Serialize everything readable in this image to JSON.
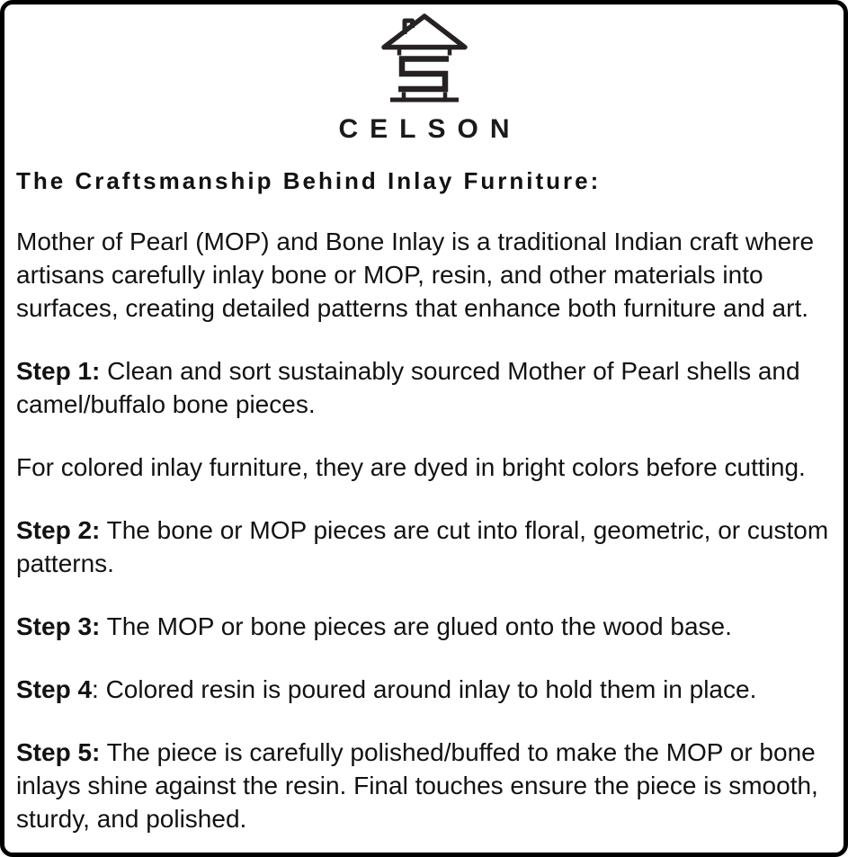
{
  "brand": {
    "name": "CELSON",
    "logo": {
      "icon": "house-s-monogram-icon",
      "stroke_color": "#262223"
    }
  },
  "colors": {
    "border": "#000000",
    "text": "#121212",
    "background": "#ffffff"
  },
  "heading": "The Craftsmanship Behind Inlay Furniture:",
  "paragraphs": [
    {
      "lines": [
        {
          "bold": "",
          "text": "Mother of Pearl (MOP) and Bone Inlay is a traditional Indian craft where"
        },
        {
          "bold": "",
          "text": "artisans carefully inlay bone or MOP, resin, and other materials into"
        },
        {
          "bold": "",
          "text": "surfaces, creating detailed patterns that enhance both furniture and art."
        }
      ]
    },
    {
      "lines": [
        {
          "bold": "Step 1:",
          "text": " Clean and sort sustainably sourced Mother of Pearl shells and"
        },
        {
          "bold": "",
          "text": "camel/buffalo bone pieces."
        }
      ]
    },
    {
      "lines": [
        {
          "bold": "",
          "text": "For colored inlay furniture, they are dyed in bright colors before cutting."
        }
      ]
    },
    {
      "lines": [
        {
          "bold": "Step 2:",
          "text": " The bone or MOP pieces are cut into floral, geometric, or custom"
        },
        {
          "bold": "",
          "text": "patterns."
        }
      ]
    },
    {
      "lines": [
        {
          "bold": "Step 3:",
          "text": " The MOP or bone pieces are glued onto the wood base."
        }
      ]
    },
    {
      "lines": [
        {
          "bold": "Step 4",
          "text": ": Colored resin is poured around inlay to hold them in place."
        }
      ]
    },
    {
      "lines": [
        {
          "bold": "Step 5:",
          "text": " The piece is carefully polished/buffed to make the MOP or bone"
        },
        {
          "bold": "",
          "text": "inlays shine against the resin. Final touches ensure the piece is smooth,"
        },
        {
          "bold": "",
          "text": "sturdy, and polished."
        }
      ]
    }
  ]
}
